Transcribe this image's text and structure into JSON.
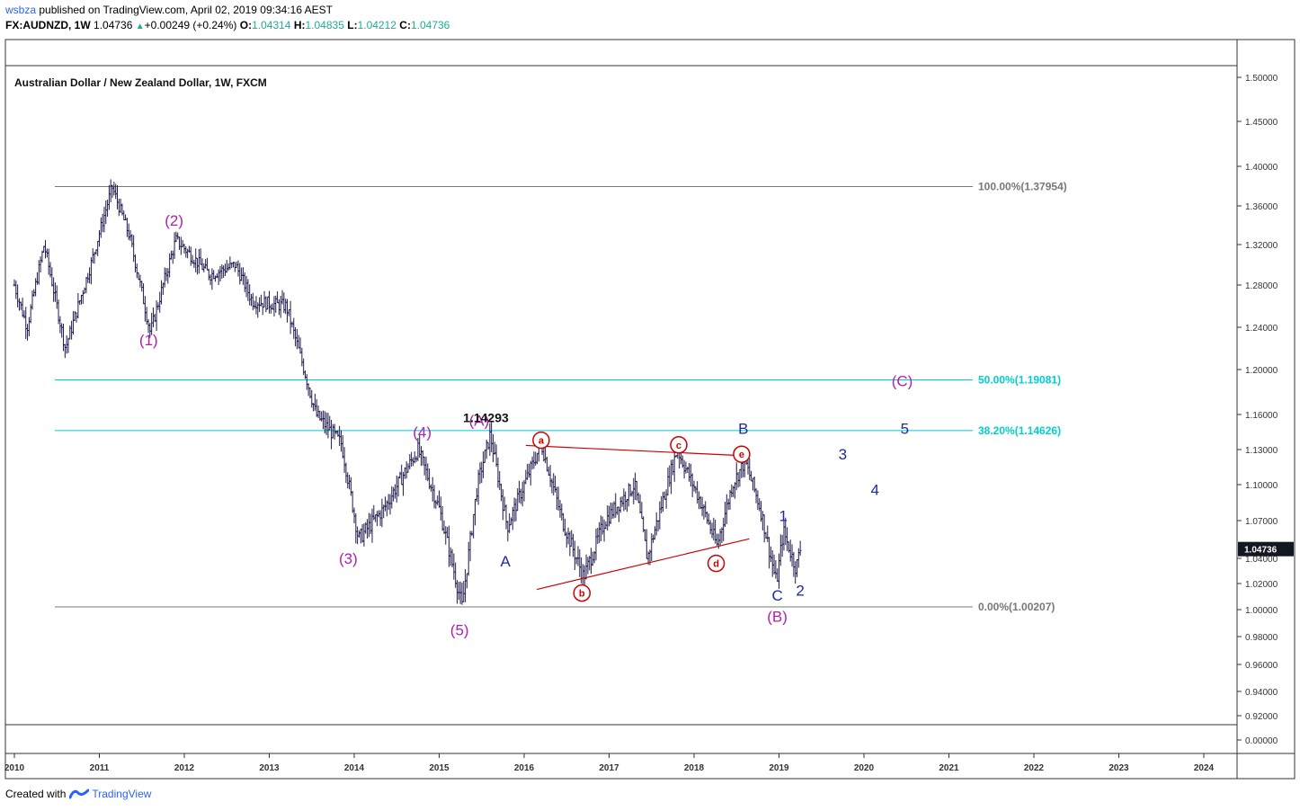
{
  "header": {
    "user": "wsbza",
    "published": " published on TradingView.com, April 02, 2019 09:34:16 AEST",
    "symbol": "FX:AUDNZD, 1W",
    "last": "1.04736",
    "change": "+0.00249 (+0.24%)",
    "open_label": "O:",
    "open": "1.04314",
    "high_label": "H:",
    "high": "1.04835",
    "low_label": "L:",
    "low": "1.04212",
    "close_label": "C:",
    "close": "1.04736"
  },
  "footer": {
    "created_with": "Created with",
    "brand": "TradingView"
  },
  "colors": {
    "bars": "#1e1b4b",
    "fib_grey": "#787878",
    "fib_cyan": "#00ced1",
    "magenta": "#b01fb0",
    "blue": "#1b2a9c",
    "red": "#cc0000",
    "axis": "#333333"
  },
  "chart_data": {
    "type": "ohlc",
    "title": "Australian Dollar / New Zealand Dollar, 1W, FXCM",
    "x_ticks": [
      "2010",
      "2011",
      "2012",
      "2013",
      "2014",
      "2015",
      "2016",
      "2017",
      "2018",
      "2019",
      "2020",
      "2021",
      "2022",
      "2023",
      "2024"
    ],
    "y_ticks": [
      "1.50000",
      "1.45000",
      "1.40000",
      "1.36000",
      "1.32000",
      "1.28000",
      "1.24000",
      "1.20000",
      "1.16000",
      "1.13000",
      "1.10000",
      "1.07000",
      "1.04000",
      "1.02000",
      "1.00000",
      "0.98000",
      "0.96000",
      "0.94000",
      "0.92000",
      "0.00000"
    ],
    "last_price": "1.04736",
    "price_keypoints": [
      [
        2010.0,
        1.28
      ],
      [
        2010.15,
        1.24
      ],
      [
        2010.35,
        1.32
      ],
      [
        2010.6,
        1.22
      ],
      [
        2010.9,
        1.3
      ],
      [
        2011.15,
        1.37954
      ],
      [
        2011.35,
        1.33
      ],
      [
        2011.6,
        1.235
      ],
      [
        2011.9,
        1.325
      ],
      [
        2012.3,
        1.29
      ],
      [
        2012.6,
        1.3
      ],
      [
        2012.8,
        1.265
      ],
      [
        2013.2,
        1.26
      ],
      [
        2013.55,
        1.16
      ],
      [
        2013.85,
        1.135
      ],
      [
        2014.05,
        1.055
      ],
      [
        2014.35,
        1.08
      ],
      [
        2014.75,
        1.13
      ],
      [
        2015.0,
        1.08
      ],
      [
        2015.27,
        1.00207
      ],
      [
        2015.45,
        1.1
      ],
      [
        2015.6,
        1.14293
      ],
      [
        2015.8,
        1.065
      ],
      [
        2016.0,
        1.1
      ],
      [
        2016.2,
        1.135
      ],
      [
        2016.45,
        1.07
      ],
      [
        2016.7,
        1.025
      ],
      [
        2016.95,
        1.07
      ],
      [
        2017.3,
        1.1
      ],
      [
        2017.45,
        1.04
      ],
      [
        2017.8,
        1.13
      ],
      [
        2018.05,
        1.09
      ],
      [
        2018.27,
        1.05
      ],
      [
        2018.45,
        1.1
      ],
      [
        2018.6,
        1.12
      ],
      [
        2018.78,
        1.08
      ],
      [
        2018.97,
        1.02
      ],
      [
        2019.05,
        1.062
      ],
      [
        2019.2,
        1.032
      ],
      [
        2019.25,
        1.0474
      ]
    ],
    "fib_levels": [
      {
        "label": "100.00%(1.37954)",
        "value": 1.37954,
        "color": "grey"
      },
      {
        "label": "50.00%(1.19081)",
        "value": 1.19081,
        "color": "cyan"
      },
      {
        "label": "38.20%(1.14626)",
        "value": 1.14626,
        "color": "cyan"
      },
      {
        "label": "0.00%(1.00207)",
        "value": 1.00207,
        "color": "grey"
      }
    ],
    "price_label": "1.14293",
    "wave_labels": [
      {
        "text": "(1)",
        "t": 2011.58,
        "p": 1.228,
        "color": "magenta"
      },
      {
        "text": "(2)",
        "t": 2011.88,
        "p": 1.345,
        "color": "magenta"
      },
      {
        "text": "(3)",
        "t": 2013.93,
        "p": 1.04,
        "color": "magenta"
      },
      {
        "text": "(4)",
        "t": 2014.8,
        "p": 1.145,
        "color": "magenta"
      },
      {
        "text": "(5)",
        "t": 2015.24,
        "p": 0.985,
        "color": "magenta"
      },
      {
        "text": "(A)",
        "t": 2015.47,
        "p": 1.155,
        "color": "magenta"
      },
      {
        "text": "(B)",
        "t": 2018.98,
        "p": 0.995,
        "color": "magenta"
      },
      {
        "text": "(C)",
        "t": 2020.45,
        "p": 1.19,
        "color": "magenta"
      },
      {
        "text": "A",
        "t": 2015.78,
        "p": 1.038,
        "color": "blue"
      },
      {
        "text": "B",
        "t": 2018.58,
        "p": 1.148,
        "color": "blue"
      },
      {
        "text": "C",
        "t": 2018.98,
        "p": 1.011,
        "color": "blue"
      },
      {
        "text": "1",
        "t": 2019.05,
        "p": 1.074,
        "color": "blue"
      },
      {
        "text": "2",
        "t": 2019.25,
        "p": 1.015,
        "color": "blue"
      },
      {
        "text": "3",
        "t": 2019.75,
        "p": 1.126,
        "color": "blue"
      },
      {
        "text": "4",
        "t": 2020.13,
        "p": 1.096,
        "color": "blue"
      },
      {
        "text": "5",
        "t": 2020.48,
        "p": 1.148,
        "color": "blue"
      }
    ],
    "triangle_labels": [
      {
        "text": "a",
        "t": 2016.2,
        "p": 1.138
      },
      {
        "text": "b",
        "t": 2016.68,
        "p": 1.0127
      },
      {
        "text": "c",
        "t": 2017.82,
        "p": 1.134
      },
      {
        "text": "d",
        "t": 2018.26,
        "p": 1.036
      },
      {
        "text": "e",
        "t": 2018.56,
        "p": 1.126
      }
    ],
    "triangle_lines": [
      {
        "t1": 2016.02,
        "p1": 1.1335,
        "t2": 2018.65,
        "p2": 1.1245
      },
      {
        "t1": 2016.15,
        "p1": 1.0155,
        "t2": 2018.65,
        "p2": 1.0555
      }
    ]
  }
}
